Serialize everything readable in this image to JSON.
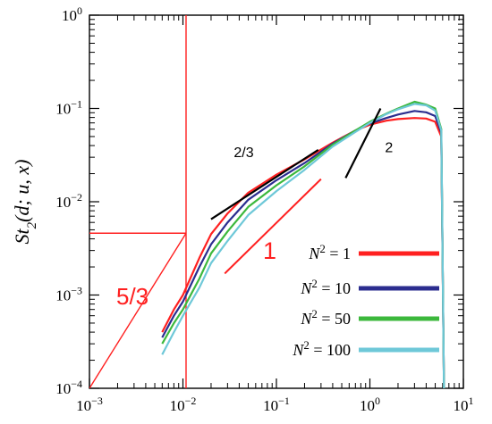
{
  "chart_data": {
    "type": "line",
    "xscale": "log",
    "yscale": "log",
    "xlim": [
      0.001,
      10
    ],
    "ylim": [
      0.0001,
      1
    ],
    "xticks": [
      {
        "value": 0.001,
        "base": "10",
        "exp": "−3"
      },
      {
        "value": 0.01,
        "base": "10",
        "exp": "−2"
      },
      {
        "value": 0.1,
        "base": "10",
        "exp": "−1"
      },
      {
        "value": 1,
        "base": "10",
        "exp": "0"
      },
      {
        "value": 10,
        "base": "10",
        "exp": "1"
      }
    ],
    "yticks": [
      {
        "value": 0.0001,
        "base": "10",
        "exp": "−4"
      },
      {
        "value": 0.001,
        "base": "10",
        "exp": "−3"
      },
      {
        "value": 0.01,
        "base": "10",
        "exp": "−2"
      },
      {
        "value": 0.1,
        "base": "10",
        "exp": "−1"
      },
      {
        "value": 1,
        "base": "10",
        "exp": "0"
      }
    ],
    "ylabel": "St2(d; u, x)",
    "grid": false,
    "legend_position": "lower-right",
    "series": [
      {
        "name": "N² = 1",
        "label_n": "N",
        "label_rest": " = 1",
        "color": "#ff2020",
        "x": [
          0.006,
          0.008,
          0.01,
          0.015,
          0.02,
          0.03,
          0.05,
          0.1,
          0.2,
          0.4,
          0.7,
          1.0,
          1.5,
          2.0,
          3.0,
          4.0,
          5.0,
          5.8,
          6.2
        ],
        "y": [
          0.0004,
          0.0007,
          0.001,
          0.0025,
          0.0045,
          0.0075,
          0.0125,
          0.0195,
          0.0285,
          0.043,
          0.058,
          0.067,
          0.074,
          0.077,
          0.079,
          0.078,
          0.072,
          0.05,
          0.0001
        ]
      },
      {
        "name": "N² = 10",
        "label_n": "N",
        "label_rest": " = 10",
        "color": "#2b2d8f",
        "x": [
          0.006,
          0.008,
          0.01,
          0.015,
          0.02,
          0.03,
          0.05,
          0.1,
          0.2,
          0.4,
          0.7,
          1.0,
          1.5,
          2.0,
          3.0,
          4.0,
          5.0,
          5.8,
          6.2
        ],
        "y": [
          0.00035,
          0.0006,
          0.00085,
          0.002,
          0.0035,
          0.006,
          0.0105,
          0.017,
          0.026,
          0.042,
          0.058,
          0.069,
          0.079,
          0.086,
          0.094,
          0.091,
          0.083,
          0.055,
          0.0001
        ]
      },
      {
        "name": "N² = 50",
        "label_n": "N",
        "label_rest": " = 50",
        "color": "#3cb83c",
        "x": [
          0.006,
          0.008,
          0.01,
          0.015,
          0.02,
          0.03,
          0.05,
          0.1,
          0.2,
          0.4,
          0.7,
          1.0,
          1.5,
          2.0,
          3.0,
          4.0,
          5.0,
          5.8,
          6.2
        ],
        "y": [
          0.0003,
          0.0005,
          0.0007,
          0.0015,
          0.0028,
          0.0048,
          0.0088,
          0.015,
          0.024,
          0.041,
          0.058,
          0.072,
          0.088,
          0.1,
          0.118,
          0.11,
          0.1,
          0.06,
          0.0001
        ]
      },
      {
        "name": "N² = 100",
        "label_n": "N",
        "label_rest": " = 100",
        "color": "#6ec8d8",
        "x": [
          0.006,
          0.008,
          0.01,
          0.015,
          0.02,
          0.03,
          0.05,
          0.1,
          0.2,
          0.4,
          0.7,
          1.0,
          1.5,
          2.0,
          3.0,
          4.0,
          5.0,
          5.8,
          6.2
        ],
        "y": [
          0.00023,
          0.0004,
          0.0006,
          0.0012,
          0.0022,
          0.0038,
          0.0072,
          0.013,
          0.022,
          0.039,
          0.056,
          0.07,
          0.087,
          0.098,
          0.112,
          0.108,
          0.095,
          0.058,
          0.0001
        ]
      }
    ],
    "reference_lines": [
      {
        "label": "2/3",
        "color": "#000000",
        "x": [
          0.02,
          0.28
        ],
        "y": [
          0.0065,
          0.036
        ],
        "label_at": [
          0.035,
          0.03
        ]
      },
      {
        "label": "2",
        "color": "#000000",
        "x": [
          0.55,
          1.3
        ],
        "y": [
          0.018,
          0.1
        ],
        "label_at": [
          1.45,
          0.034
        ]
      }
    ],
    "annotations": {
      "red_segment": {
        "x": [
          0.028,
          0.3
        ],
        "y": [
          0.0017,
          0.0175
        ],
        "color": "#ff2020"
      },
      "red_label_one": "1",
      "red_label_five_thirds": "5/3",
      "vertical_line_x": 0.0108,
      "horizontal_line_y": 0.0046,
      "five_thirds_line": {
        "x": [
          0.001,
          0.0108
        ],
        "y": [
          0.0001,
          0.0046
        ]
      }
    }
  }
}
